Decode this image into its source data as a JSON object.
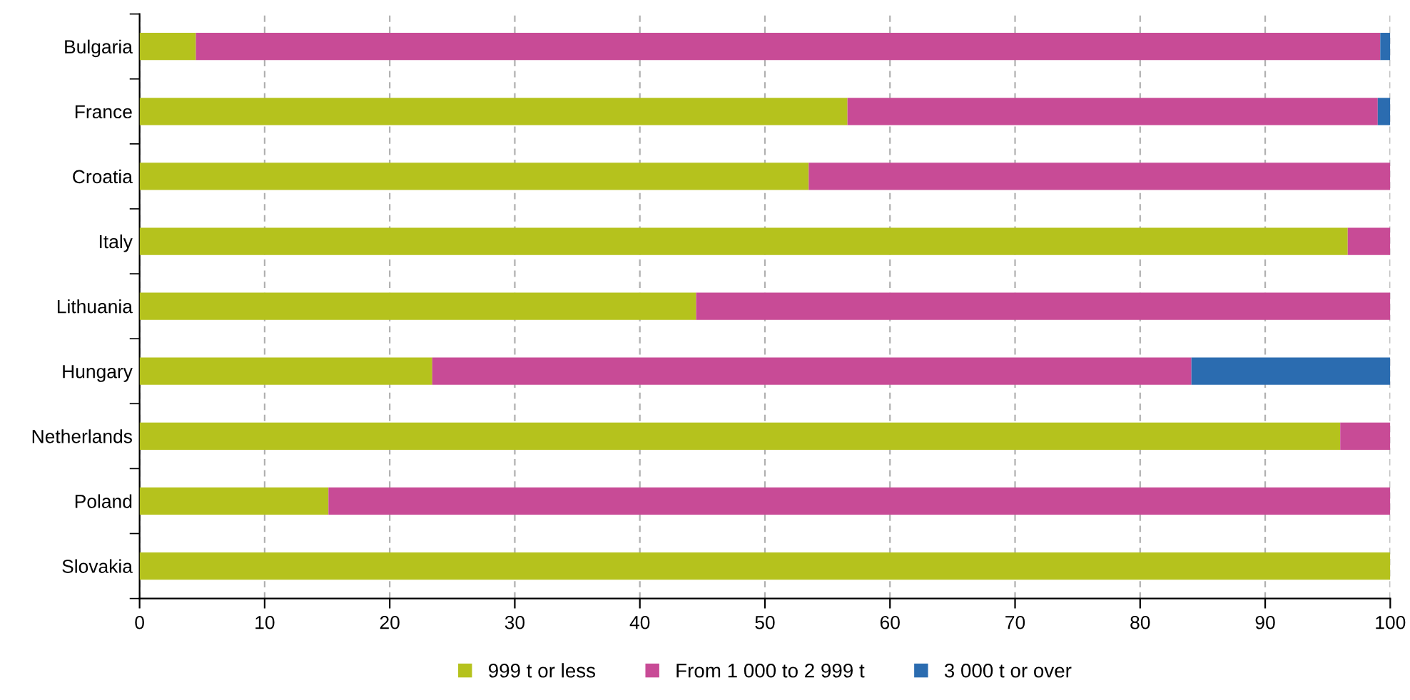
{
  "chart_data": {
    "type": "bar",
    "orientation": "horizontal",
    "stacked": true,
    "categories": [
      "Bulgaria",
      "France",
      "Croatia",
      "Italy",
      "Lithuania",
      "Hungary",
      "Netherlands",
      "Poland",
      "Slovakia"
    ],
    "series": [
      {
        "name": "999 t or less",
        "color": "#b5c21d",
        "values": [
          4.5,
          56.6,
          53.5,
          96.6,
          44.5,
          23.4,
          96.0,
          15.1,
          100
        ]
      },
      {
        "name": "From 1 000 to 2 999 t",
        "color": "#c84b96",
        "values": [
          94.7,
          42.4,
          46.5,
          3.4,
          55.5,
          60.7,
          4.0,
          84.9,
          0
        ]
      },
      {
        "name": "3 000 t or over",
        "color": "#2b6cb0",
        "values": [
          0.8,
          1.0,
          0,
          0,
          0,
          15.9,
          0,
          0,
          0
        ]
      }
    ],
    "xlim": [
      0,
      100
    ],
    "xticks": [
      0,
      10,
      20,
      30,
      40,
      50,
      60,
      70,
      80,
      90,
      100
    ],
    "grid": "x",
    "legend": "bottom"
  }
}
